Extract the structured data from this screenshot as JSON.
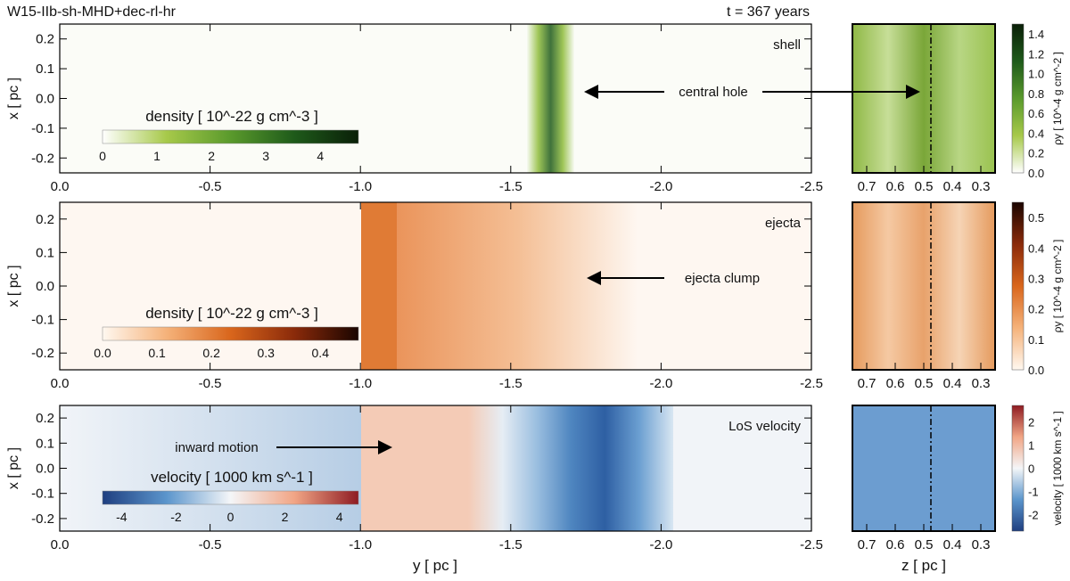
{
  "chart_data": {
    "type": "heatmap",
    "title": "W15-IIb-sh-MHD+dec-rl-hr",
    "time_label": "t = 367 years",
    "xlabel": "y [ pc ]",
    "ylabel": "x [ pc ]",
    "side_xlabel": "z [ pc ]",
    "main_xlim": [
      0.0,
      -2.5
    ],
    "main_xticks": [
      "0.0",
      "-0.5",
      "-1.0",
      "-1.5",
      "-2.0",
      "-2.5"
    ],
    "main_ylim": [
      -0.25,
      0.25
    ],
    "main_yticks": [
      "0.2",
      "0.1",
      "0.0",
      "-0.1",
      "-0.2"
    ],
    "side_xlim": [
      0.75,
      0.25
    ],
    "side_xticks": [
      "0.7",
      "0.6",
      "0.5",
      "0.4",
      "0.3"
    ],
    "panels": [
      {
        "label": "shell",
        "colorbar_title": "density [ 10^-22 g cm^-3 ]",
        "colorbar_ticks": [
          "0",
          "1",
          "2",
          "3",
          "4"
        ],
        "colorbar_range": [
          0,
          4.7
        ],
        "colormap": [
          "#ffffff",
          "#a7c94a",
          "#5a9a2c",
          "#1e5a1a",
          "#0a1f08"
        ],
        "annotation": "central hole",
        "side_colorbar_label": "ρy [ 10^-4 g cm^-2 ]",
        "side_colorbar_ticks": [
          "0.0",
          "0.2",
          "0.4",
          "0.6",
          "0.8",
          "1.0",
          "1.2",
          "1.4"
        ],
        "side_colorbar_range": [
          0,
          1.5
        ]
      },
      {
        "label": "ejecta",
        "colorbar_title": "density [ 10^-22 g cm^-3 ]",
        "colorbar_ticks": [
          "0.0",
          "0.1",
          "0.2",
          "0.3",
          "0.4"
        ],
        "colorbar_range": [
          0,
          0.47
        ],
        "colormap": [
          "#fff8f0",
          "#f5b27a",
          "#d9661c",
          "#8a2a0a",
          "#1a0500"
        ],
        "annotation": "ejecta clump",
        "side_colorbar_label": "ρy [ 10^-4 g cm^-2 ]",
        "side_colorbar_ticks": [
          "0.0",
          "0.1",
          "0.2",
          "0.3",
          "0.4",
          "0.5"
        ],
        "side_colorbar_range": [
          0,
          0.55
        ]
      },
      {
        "label": "LoS velocity",
        "colorbar_title": "velocity [ 1000 km s^-1 ]",
        "colorbar_ticks": [
          "-4",
          "-2",
          "0",
          "2",
          "4"
        ],
        "colorbar_range": [
          -4.7,
          4.7
        ],
        "colormap": [
          "#1f3f80",
          "#5b95cc",
          "#f4f6f8",
          "#f1a585",
          "#8e1b22"
        ],
        "annotation": "inward motion",
        "side_colorbar_label": "velocity [ 1000 km s^-1 ]",
        "side_colorbar_ticks": [
          "-2",
          "-1",
          "0",
          "1",
          "2"
        ],
        "side_colorbar_range": [
          -2.7,
          2.7
        ]
      }
    ]
  }
}
